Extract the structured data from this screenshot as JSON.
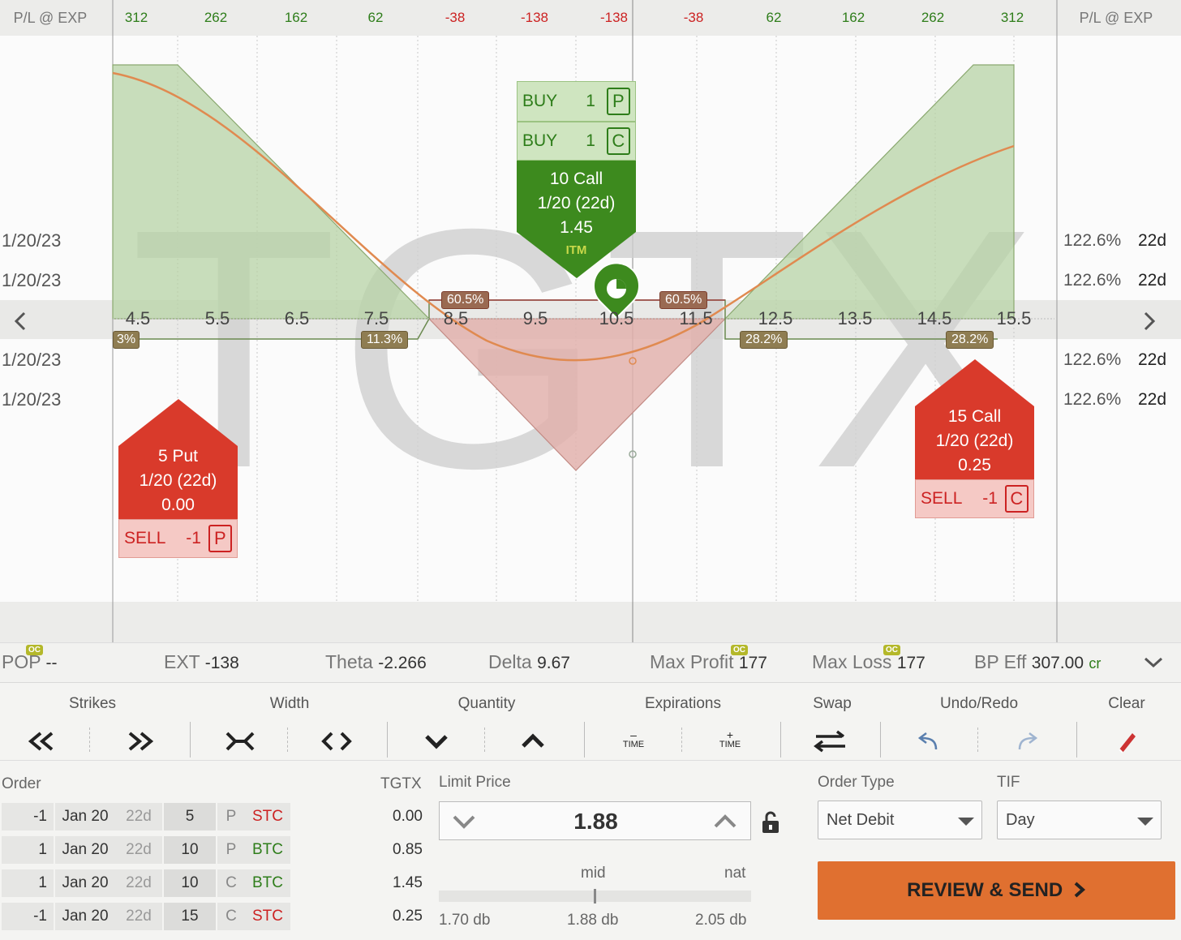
{
  "header": {
    "left_label": "P/L @ EXP",
    "right_label": "P/L @ EXP",
    "pl_values": [
      "312",
      "262",
      "162",
      "62",
      "-38",
      "-138",
      "-138",
      "-38",
      "62",
      "162",
      "262",
      "312"
    ]
  },
  "watermark": "TGTX",
  "dates": [
    "1/20/23",
    "1/20/23",
    "1/20/23",
    "1/20/23"
  ],
  "iv_values": [
    "122.6%",
    "122.6%",
    "122.6%",
    "122.6%"
  ],
  "dte_values": [
    "22d",
    "22d",
    "22d",
    "22d"
  ],
  "strikes": [
    "4.5",
    "5.5",
    "6.5",
    "7.5",
    "8.5",
    "9.5",
    "10.5",
    "11.5",
    "12.5",
    "13.5",
    "14.5",
    "15.5"
  ],
  "prob_labels": {
    "p1": "3%",
    "p2": "11.3%",
    "p3": "60.5%",
    "p4": "60.5%",
    "p5": "28.2%",
    "p6": "28.2%"
  },
  "legs": {
    "long": {
      "rows": [
        {
          "action": "BUY",
          "qty": "1",
          "type": "P"
        },
        {
          "action": "BUY",
          "qty": "1",
          "type": "C"
        }
      ],
      "title": "10 Call",
      "expiry": "1/20 (22d)",
      "price": "1.45",
      "badge": "ITM"
    },
    "short_put": {
      "title": "5 Put",
      "expiry": "1/20 (22d)",
      "price": "0.00",
      "action": "SELL",
      "qty": "-1",
      "type": "P"
    },
    "short_call": {
      "title": "15 Call",
      "expiry": "1/20 (22d)",
      "price": "0.25",
      "action": "SELL",
      "qty": "-1",
      "type": "C"
    }
  },
  "metrics": {
    "pop_label": "POP",
    "pop_value": "--",
    "ext_label": "EXT",
    "ext_value": "-138",
    "theta_label": "Theta",
    "theta_value": "-2.266",
    "delta_label": "Delta",
    "delta_value": "9.67",
    "maxprofit_label": "Max Profit",
    "maxprofit_value": "177",
    "maxloss_label": "Max Loss",
    "maxloss_value": "177",
    "bp_label": "BP Eff",
    "bp_value": "307.00",
    "bp_suffix": "cr",
    "oc": "OC"
  },
  "toolbar": {
    "strikes": "Strikes",
    "width": "Width",
    "quantity": "Quantity",
    "expirations": "Expirations",
    "swap": "Swap",
    "undo_redo": "Undo/Redo",
    "clear": "Clear",
    "time": "TIME",
    "minus": "–",
    "plus": "+"
  },
  "order": {
    "title": "Order",
    "symbol": "TGTX",
    "rows": [
      {
        "qty": "-1",
        "date": "Jan 20",
        "dte": "22d",
        "strike": "5",
        "type": "P",
        "action": "STC",
        "price": "0.00"
      },
      {
        "qty": "1",
        "date": "Jan 20",
        "dte": "22d",
        "strike": "10",
        "type": "P",
        "action": "BTC",
        "price": "0.85"
      },
      {
        "qty": "1",
        "date": "Jan 20",
        "dte": "22d",
        "strike": "10",
        "type": "C",
        "action": "BTC",
        "price": "1.45"
      },
      {
        "qty": "-1",
        "date": "Jan 20",
        "dte": "22d",
        "strike": "15",
        "type": "C",
        "action": "STC",
        "price": "0.25"
      }
    ],
    "limit_label": "Limit Price",
    "limit_value": "1.88",
    "mid_label": "mid",
    "nat_label": "nat",
    "range_low": "1.70 db",
    "range_mid": "1.88 db",
    "range_high": "2.05 db",
    "order_type_label": "Order Type",
    "order_type_value": "Net Debit",
    "tif_label": "TIF",
    "tif_value": "Day",
    "review_label": "REVIEW & SEND"
  },
  "colors": {
    "accent": "#e07030",
    "green": "#2e7d1a",
    "red": "#cc2222",
    "legGreen": "#3d8a1e",
    "legRed": "#d93a2b"
  }
}
